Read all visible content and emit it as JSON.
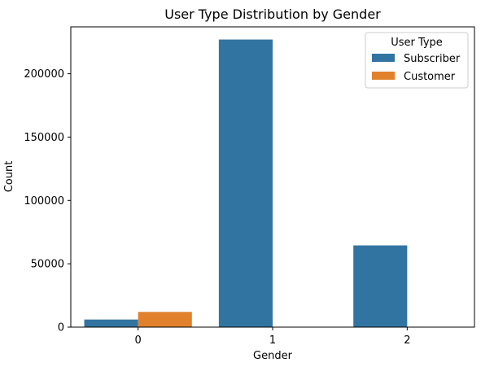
{
  "chart_data": {
    "type": "bar",
    "title": "User Type Distribution by Gender",
    "xlabel": "Gender",
    "ylabel": "Count",
    "categories": [
      "0",
      "1",
      "2"
    ],
    "series": [
      {
        "name": "Subscriber",
        "values": [
          6000,
          227000,
          64500
        ],
        "color": "#3274a1"
      },
      {
        "name": "Customer",
        "values": [
          12000,
          0,
          0
        ],
        "color": "#e1812c"
      }
    ],
    "ylim": [
      0,
      237000
    ],
    "yticks": [
      0,
      50000,
      100000,
      150000,
      200000
    ],
    "ytick_labels": [
      "0",
      "50000",
      "100000",
      "150000",
      "200000"
    ],
    "legend": {
      "title": "User Type",
      "position": "top-right"
    },
    "grid": false
  }
}
